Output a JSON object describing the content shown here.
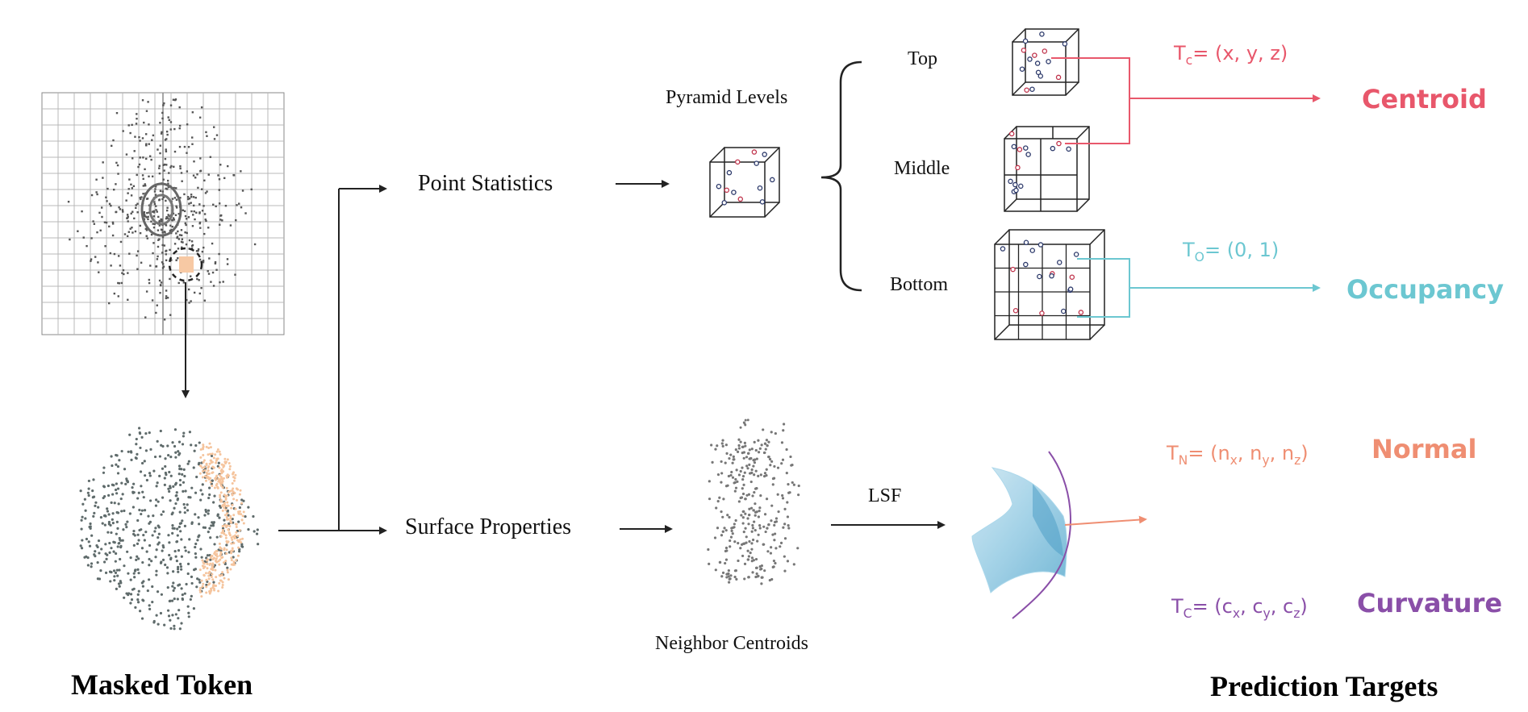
{
  "colors": {
    "centroid": "#e8576b",
    "occupancy": "#6cc7d1",
    "normal": "#ef8e72",
    "curvature": "#8a4fa8",
    "text": "#111111",
    "highlight_patch": "#f7c9a4"
  },
  "labels": {
    "masked_token": "Masked Token",
    "prediction_targets": "Prediction Targets",
    "point_statistics": "Point Statistics",
    "surface_properties": "Surface Properties",
    "pyramid_levels": "Pyramid Levels",
    "level_top": "Top",
    "level_middle": "Middle",
    "level_bottom": "Bottom",
    "lsf": "LSF",
    "neighbor_centroids": "Neighbor Centroids"
  },
  "targets": {
    "centroid": {
      "name": "Centroid",
      "formula_prefix": "T",
      "formula_sub": "c",
      "formula_rest": "= (x, y, z)"
    },
    "occupancy": {
      "name": "Occupancy",
      "formula_prefix": "T",
      "formula_sub": "O",
      "formula_rest": "= (0, 1)"
    },
    "normal": {
      "name": "Normal",
      "formula_prefix": "T",
      "formula_sub": "N",
      "formula_body": "= (n",
      "s1": "x",
      "m1": ", n",
      "s2": "y",
      "m2": ", n",
      "s3": "z",
      "end": ")"
    },
    "curvature": {
      "name": "Curvature",
      "formula_prefix": "T",
      "formula_sub": "C",
      "formula_body": "= (c",
      "s1": "x",
      "m1": ", c",
      "s2": "y",
      "m2": ", c",
      "s3": "z",
      "end": ")"
    }
  }
}
